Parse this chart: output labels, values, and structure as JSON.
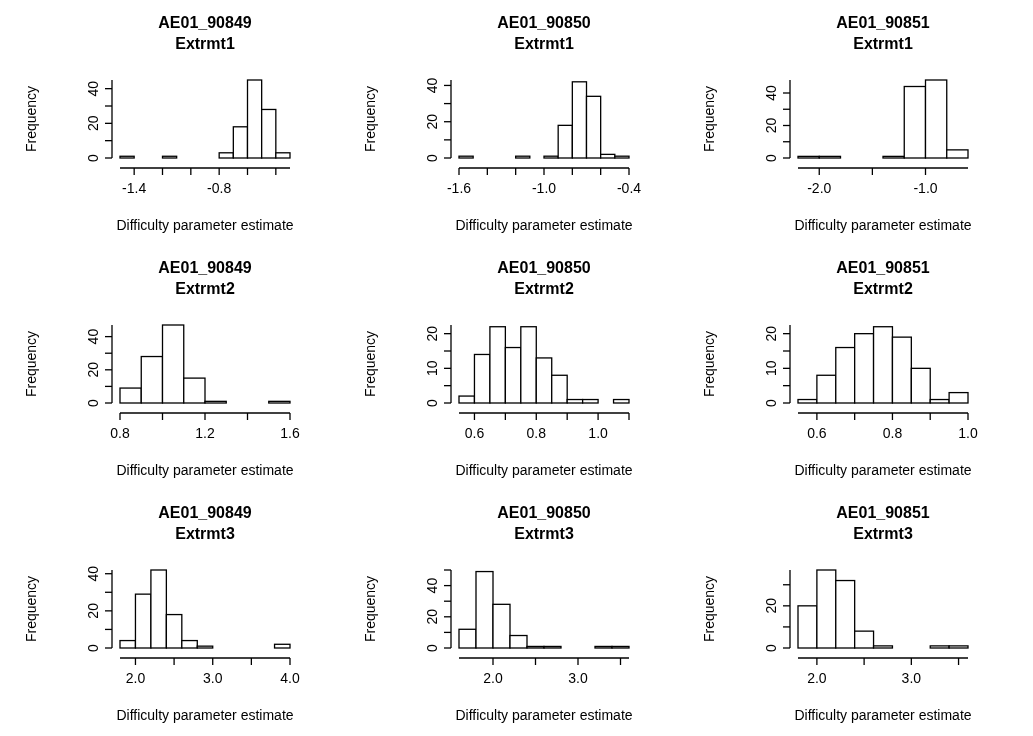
{
  "chart_data": [
    {
      "type": "histogram",
      "title": "AE01_90849",
      "subtitle": "Extrmt1",
      "xlabel": "Difficulty parameter estimate",
      "ylabel": "Frequency",
      "color": "#ffffff",
      "bins": [
        -1.5,
        -1.4,
        -1.3,
        -1.2,
        -1.1,
        -1.0,
        -0.9,
        -0.8,
        -0.7,
        -0.6,
        -0.5,
        -0.4,
        -0.3
      ],
      "values": [
        1,
        0,
        0,
        1,
        0,
        0,
        0,
        3,
        18,
        45,
        28,
        3
      ],
      "xlim": [
        -1.5,
        -0.3
      ],
      "xticks": [
        -1.4,
        {
          "value": -1.2,
          "label": null
        },
        {
          "value": -1.0,
          "label": null
        },
        -0.8,
        {
          "value": -0.6,
          "label": null
        },
        {
          "value": -0.4,
          "label": null
        }
      ],
      "ylim": [
        0,
        45
      ],
      "yticks": [
        0,
        {
          "value": 10,
          "label": null
        },
        20,
        {
          "value": 30,
          "label": null
        },
        40
      ]
    },
    {
      "type": "histogram",
      "title": "AE01_90850",
      "subtitle": "Extrmt1",
      "xlabel": "Difficulty parameter estimate",
      "ylabel": "Frequency",
      "color": "#ffffff",
      "bins": [
        -1.6,
        -1.5,
        -1.4,
        -1.3,
        -1.2,
        -1.1,
        -1.0,
        -0.9,
        -0.8,
        -0.7,
        -0.6,
        -0.5,
        -0.4
      ],
      "values": [
        1,
        0,
        0,
        0,
        1,
        0,
        1,
        18,
        42,
        34,
        2,
        1
      ],
      "xlim": [
        -1.6,
        -0.4
      ],
      "xticks": [
        -1.6,
        {
          "value": -1.4,
          "label": null
        },
        {
          "value": -1.2,
          "label": null
        },
        {
          "value": -1.0,
          "label": "-1.0"
        },
        {
          "value": -0.8,
          "label": null
        },
        {
          "value": -0.6,
          "label": null
        },
        -0.4
      ],
      "ylim": [
        0,
        43
      ],
      "yticks": [
        0,
        {
          "value": 10,
          "label": null
        },
        20,
        {
          "value": 30,
          "label": null
        },
        40
      ]
    },
    {
      "type": "histogram",
      "title": "AE01_90851",
      "subtitle": "Extrmt1",
      "xlabel": "Difficulty parameter estimate",
      "ylabel": "Frequency",
      "color": "#ffffff",
      "bins": [
        -2.2,
        -2.0,
        -1.8,
        -1.6,
        -1.4,
        -1.2,
        -1.0,
        -0.8,
        -0.6
      ],
      "values": [
        1,
        1,
        0,
        0,
        1,
        44,
        48,
        5
      ],
      "xlim": [
        -2.2,
        -0.6
      ],
      "xticks": [
        {
          "value": -2.0,
          "label": "-2.0"
        },
        {
          "value": -1.5,
          "label": null
        },
        {
          "value": -1.0,
          "label": "-1.0"
        }
      ],
      "ylim": [
        0,
        48
      ],
      "yticks": [
        0,
        {
          "value": 10,
          "label": null
        },
        20,
        {
          "value": 30,
          "label": null
        },
        40
      ]
    },
    {
      "type": "histogram",
      "title": "AE01_90849",
      "subtitle": "Extrmt2",
      "xlabel": "Difficulty parameter estimate",
      "ylabel": "Frequency",
      "color": "#ffffff",
      "bins": [
        0.8,
        0.9,
        1.0,
        1.1,
        1.2,
        1.3,
        1.4,
        1.5,
        1.6
      ],
      "values": [
        9,
        28,
        47,
        15,
        1,
        0,
        0,
        1
      ],
      "xlim": [
        0.8,
        1.6
      ],
      "xticks": [
        0.8,
        {
          "value": 1.0,
          "label": null
        },
        1.2,
        {
          "value": 1.4,
          "label": null
        },
        1.6
      ],
      "ylim": [
        0,
        47
      ],
      "yticks": [
        0,
        {
          "value": 10,
          "label": null
        },
        20,
        {
          "value": 30,
          "label": null
        },
        40
      ]
    },
    {
      "type": "histogram",
      "title": "AE01_90850",
      "subtitle": "Extrmt2",
      "xlabel": "Difficulty parameter estimate",
      "ylabel": "Frequency",
      "color": "#ffffff",
      "bins": [
        0.55,
        0.6,
        0.65,
        0.7,
        0.75,
        0.8,
        0.85,
        0.9,
        0.95,
        1.0,
        1.05,
        1.1
      ],
      "values": [
        2,
        14,
        22,
        16,
        22,
        13,
        8,
        1,
        1,
        0,
        1
      ],
      "xlim": [
        0.55,
        1.1
      ],
      "xticks": [
        0.6,
        {
          "value": 0.7,
          "label": null
        },
        0.8,
        {
          "value": 0.9,
          "label": null
        },
        {
          "value": 1.0,
          "label": "1.0"
        },
        {
          "value": 1.1,
          "label": null
        }
      ],
      "ylim": [
        0,
        22.5
      ],
      "yticks": [
        0,
        {
          "value": 5,
          "label": null
        },
        10,
        {
          "value": 15,
          "label": null
        },
        20
      ]
    },
    {
      "type": "histogram",
      "title": "AE01_90851",
      "subtitle": "Extrmt2",
      "xlabel": "Difficulty parameter estimate",
      "ylabel": "Frequency",
      "color": "#ffffff",
      "bins": [
        0.55,
        0.6,
        0.65,
        0.7,
        0.75,
        0.8,
        0.85,
        0.9,
        0.95,
        1.0
      ],
      "values": [
        1,
        8,
        16,
        20,
        22,
        19,
        10,
        1,
        3
      ],
      "xlim": [
        0.55,
        1.0
      ],
      "xticks": [
        0.6,
        {
          "value": 0.7,
          "label": null
        },
        0.8,
        {
          "value": 0.9,
          "label": null
        },
        {
          "value": 1.0,
          "label": "1.0"
        }
      ],
      "ylim": [
        0,
        22.5
      ],
      "yticks": [
        0,
        {
          "value": 5,
          "label": null
        },
        10,
        {
          "value": 15,
          "label": null
        },
        20
      ]
    },
    {
      "type": "histogram",
      "title": "AE01_90849",
      "subtitle": "Extrmt3",
      "xlabel": "Difficulty parameter estimate",
      "ylabel": "Frequency",
      "color": "#ffffff",
      "bins": [
        1.8,
        2.0,
        2.2,
        2.4,
        2.6,
        2.8,
        3.0,
        3.2,
        3.4,
        3.6,
        3.8,
        4.0
      ],
      "values": [
        4,
        29,
        42,
        18,
        4,
        1,
        0,
        0,
        0,
        0,
        2
      ],
      "xlim": [
        1.8,
        4.0
      ],
      "xticks": [
        {
          "value": 2.0,
          "label": "2.0"
        },
        {
          "value": 2.5,
          "label": null
        },
        {
          "value": 3.0,
          "label": "3.0"
        },
        {
          "value": 3.5,
          "label": null
        },
        {
          "value": 4.0,
          "label": "4.0"
        }
      ],
      "ylim": [
        0,
        42
      ],
      "yticks": [
        0,
        {
          "value": 10,
          "label": null
        },
        20,
        {
          "value": 30,
          "label": null
        },
        40
      ]
    },
    {
      "type": "histogram",
      "title": "AE01_90850",
      "subtitle": "Extrmt3",
      "xlabel": "Difficulty parameter estimate",
      "ylabel": "Frequency",
      "color": "#ffffff",
      "bins": [
        1.6,
        1.8,
        2.0,
        2.2,
        2.4,
        2.6,
        2.8,
        3.0,
        3.2,
        3.4,
        3.6
      ],
      "values": [
        12,
        49,
        28,
        8,
        1,
        1,
        0,
        0,
        1,
        1
      ],
      "xlim": [
        1.6,
        3.6
      ],
      "xticks": [
        {
          "value": 2.0,
          "label": "2.0"
        },
        {
          "value": 2.5,
          "label": null
        },
        {
          "value": 3.0,
          "label": "3.0"
        },
        {
          "value": 3.5,
          "label": null
        }
      ],
      "ylim": [
        0,
        50
      ],
      "yticks": [
        0,
        {
          "value": 10,
          "label": null
        },
        20,
        {
          "value": 30,
          "label": null
        },
        40,
        {
          "value": 50,
          "label": null
        }
      ]
    },
    {
      "type": "histogram",
      "title": "AE01_90851",
      "subtitle": "Extrmt3",
      "xlabel": "Difficulty parameter estimate",
      "ylabel": "Frequency",
      "color": "#ffffff",
      "bins": [
        1.8,
        2.0,
        2.2,
        2.4,
        2.6,
        2.8,
        3.0,
        3.2,
        3.4,
        3.6
      ],
      "values": [
        20,
        37,
        32,
        8,
        1,
        0,
        0,
        1,
        1
      ],
      "xlim": [
        1.8,
        3.6
      ],
      "xticks": [
        {
          "value": 2.0,
          "label": "2.0"
        },
        {
          "value": 2.5,
          "label": null
        },
        {
          "value": 3.0,
          "label": "3.0"
        },
        {
          "value": 3.5,
          "label": null
        }
      ],
      "ylim": [
        0,
        37
      ],
      "yticks": [
        0,
        {
          "value": 10,
          "label": null
        },
        20,
        {
          "value": 30,
          "label": null
        }
      ]
    }
  ]
}
